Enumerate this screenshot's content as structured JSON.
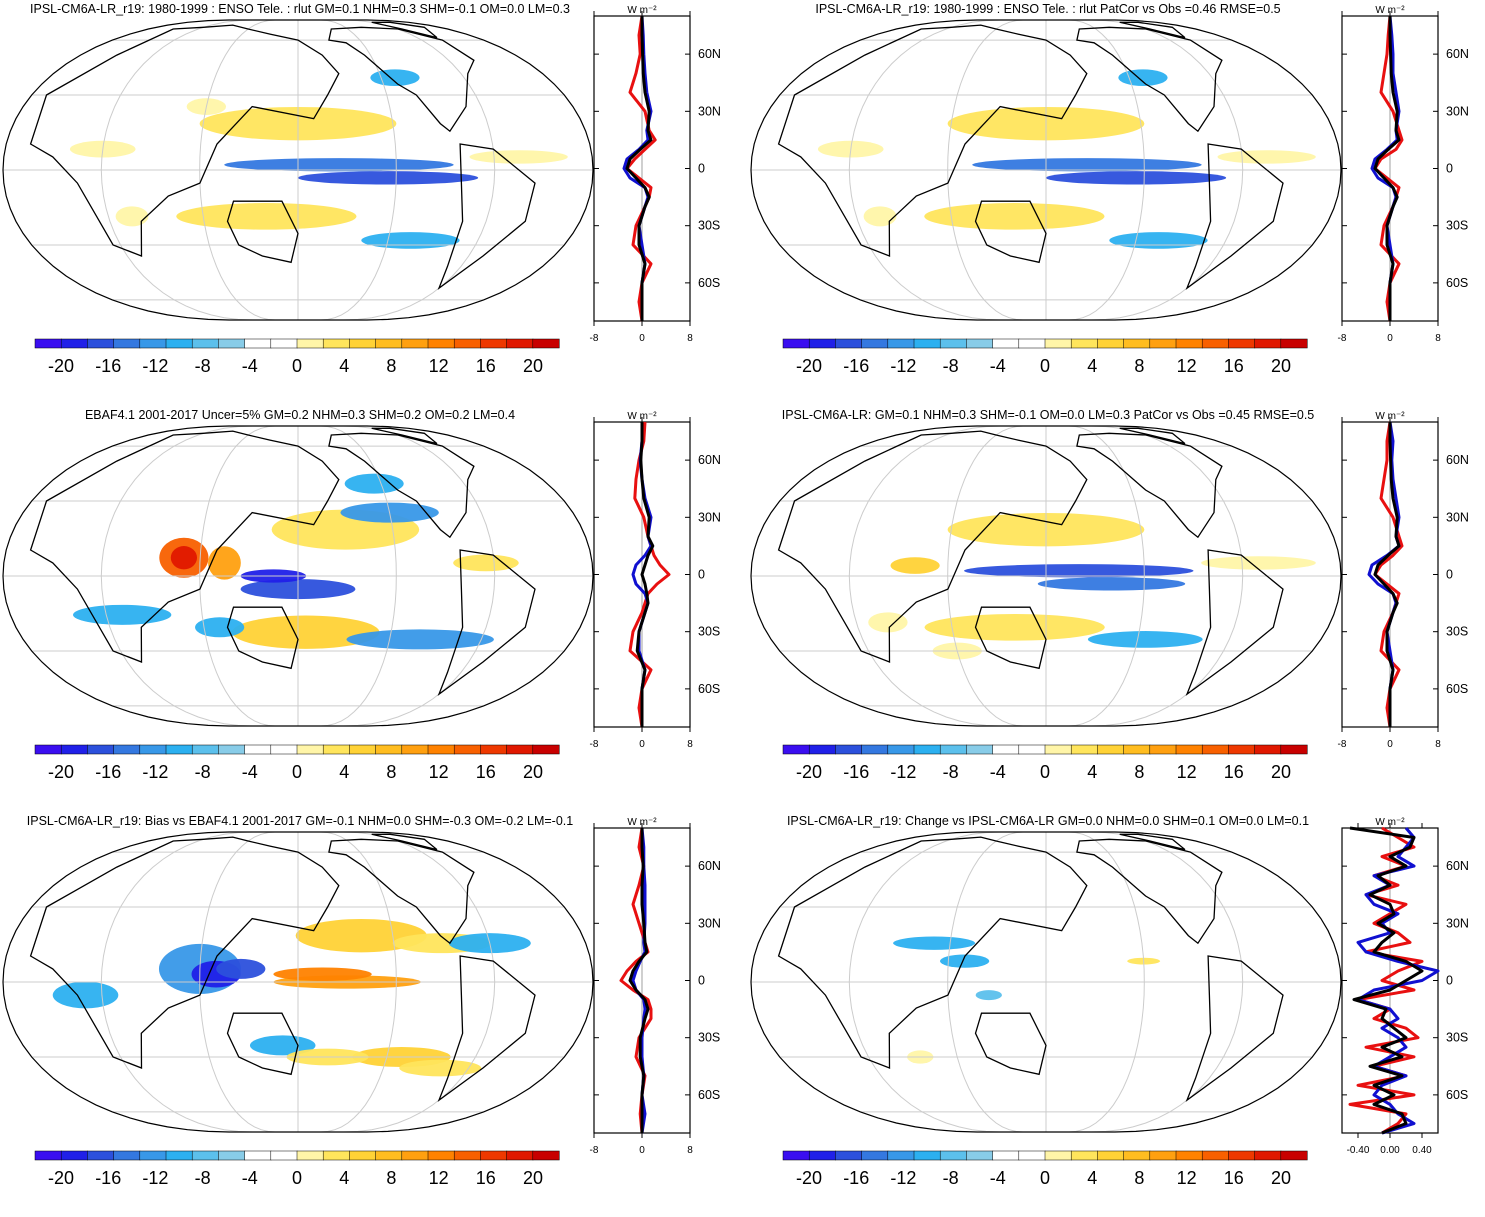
{
  "palette": [
    "#3a0ef0",
    "#2020e8",
    "#2c50dc",
    "#3478e0",
    "#3898e8",
    "#2cb0f0",
    "#5cc0ec",
    "#88cce8",
    "#ffffff",
    "#ffffff",
    "#fff5a8",
    "#ffe55c",
    "#ffd236",
    "#ffbd20",
    "#ffa010",
    "#ff8200",
    "#f86000",
    "#ee3800",
    "#e01800",
    "#c80000"
  ],
  "colorbar_labels": [
    "-20",
    "-16",
    "-12",
    "-8",
    "-4",
    "0",
    "4",
    "8",
    "12",
    "16",
    "20"
  ],
  "lat_labels": [
    "60N",
    "30N",
    "0",
    "30S",
    "60S"
  ],
  "units": "W m⁻²",
  "line_colors": {
    "model": "#e81010",
    "obs": "#1010d0",
    "other": "#000000"
  },
  "panels": [
    {
      "title": "IPSL-CM6A-LR_r19: 1980-1999 : ENSO Tele. : rlut GM=0.1 NHM=0.3 SHM=-0.1 OM=0.0 LM=0.3",
      "x_tick_labels": [
        "-8",
        "0",
        "8"
      ],
      "chart_data": {
        "type": "line",
        "x_range": [
          -8,
          8
        ],
        "y_range": [
          -80,
          80
        ],
        "y": [
          80,
          70,
          60,
          50,
          40,
          30,
          20,
          15,
          10,
          5,
          0,
          -5,
          -10,
          -15,
          -20,
          -30,
          -40,
          -50,
          -60,
          -70,
          -80
        ],
        "series": [
          {
            "color": "model",
            "values": [
              0,
              -0.5,
              -0.3,
              -1.0,
              -2.0,
              0.5,
              1.2,
              2.2,
              0.5,
              -1.2,
              -2.5,
              -0.5,
              1.5,
              1.2,
              0.5,
              -1.0,
              -1.5,
              1.5,
              0,
              -0.5,
              0
            ]
          },
          {
            "color": "obs",
            "values": [
              0,
              0.2,
              0.3,
              0.5,
              0.8,
              1.5,
              0.8,
              1.0,
              -0.5,
              -2.5,
              -3.0,
              -2.0,
              0.5,
              1.0,
              0.5,
              -0.5,
              0,
              0.5,
              0,
              0,
              0
            ]
          },
          {
            "color": "other",
            "values": [
              0,
              0,
              0.1,
              0.2,
              0.5,
              1.2,
              1.0,
              1.5,
              -0.3,
              -2.0,
              -2.5,
              -1.0,
              0.5,
              1.2,
              0.5,
              -0.5,
              -0.5,
              0.5,
              0,
              0,
              0
            ]
          }
        ]
      }
    },
    {
      "title": "IPSL-CM6A-LR_r19: 1980-1999 : ENSO Tele. : rlut PatCor vs Obs =0.46 RMSE=0.5",
      "x_tick_labels": [
        "-8",
        "0",
        "8"
      ],
      "chart_data": {
        "type": "line",
        "x_range": [
          -8,
          8
        ],
        "y_range": [
          -80,
          80
        ],
        "y": [
          80,
          70,
          60,
          50,
          40,
          30,
          20,
          15,
          10,
          5,
          0,
          -5,
          -10,
          -15,
          -20,
          -30,
          -40,
          -50,
          -60,
          -70,
          -80
        ],
        "series": [
          {
            "color": "model",
            "values": [
              0,
              -0.3,
              -0.5,
              -1.0,
              -1.5,
              0.5,
              1.5,
              2.0,
              1.0,
              -1.5,
              -2.5,
              -0.5,
              1.5,
              1.0,
              0.5,
              -1.0,
              -1.5,
              1.5,
              0,
              -0.5,
              0
            ]
          },
          {
            "color": "obs",
            "values": [
              0,
              0.3,
              0.5,
              0.5,
              1.0,
              1.5,
              1.0,
              1.2,
              -0.5,
              -2.5,
              -3.0,
              -2.0,
              0.5,
              1.0,
              0.5,
              -0.5,
              0,
              0.5,
              0,
              0,
              0
            ]
          },
          {
            "color": "other",
            "values": [
              0,
              0,
              0.1,
              0.2,
              0.5,
              1.2,
              1.0,
              1.5,
              -0.3,
              -2.0,
              -2.5,
              -1.0,
              0.5,
              1.2,
              0.5,
              -0.5,
              -0.5,
              0.5,
              0,
              0,
              0
            ]
          }
        ]
      }
    },
    {
      "title": "EBAF4.1 2001-2017 Uncer=5% GM=0.2 NHM=0.3 SHM=0.2 OM=0.2 LM=0.4",
      "x_tick_labels": [
        "-8",
        "0",
        "8"
      ],
      "chart_data": {
        "type": "line",
        "x_range": [
          -8,
          8
        ],
        "y_range": [
          -80,
          80
        ],
        "y": [
          80,
          70,
          60,
          50,
          40,
          30,
          20,
          15,
          10,
          5,
          0,
          -5,
          -10,
          -15,
          -20,
          -30,
          -40,
          -50,
          -60,
          -70,
          -80
        ],
        "series": [
          {
            "color": "model",
            "values": [
              0.5,
              0.3,
              -0.5,
              -1.0,
              -1.2,
              0.3,
              1.0,
              1.5,
              2.0,
              3.0,
              4.5,
              2.5,
              1.0,
              0.5,
              0,
              -1.5,
              -2.0,
              1.5,
              0,
              -0.5,
              0
            ]
          },
          {
            "color": "obs",
            "values": [
              0,
              0,
              -0.3,
              0,
              0.5,
              1.5,
              1.0,
              1.5,
              0.5,
              -1.0,
              -1.5,
              -1.0,
              0.5,
              1.0,
              0.5,
              -0.5,
              -0.5,
              0.5,
              0,
              0,
              0
            ]
          },
          {
            "color": "other",
            "values": [
              0,
              0,
              -0.2,
              0,
              0.3,
              1.2,
              1.0,
              1.8,
              1.0,
              0.5,
              0,
              0.5,
              0.8,
              1.0,
              0.5,
              -0.5,
              -0.8,
              0.5,
              0,
              0,
              0
            ]
          }
        ]
      }
    },
    {
      "title": "IPSL-CM6A-LR: GM=0.1 NHM=0.3 SHM=-0.1 OM=0.0 LM=0.3 PatCor vs Obs =0.45 RMSE=0.5",
      "x_tick_labels": [
        "-8",
        "0",
        "8"
      ],
      "chart_data": {
        "type": "line",
        "x_range": [
          -8,
          8
        ],
        "y_range": [
          -80,
          80
        ],
        "y": [
          80,
          70,
          60,
          50,
          40,
          30,
          20,
          15,
          10,
          5,
          0,
          -5,
          -10,
          -15,
          -20,
          -30,
          -40,
          -50,
          -60,
          -70,
          -80
        ],
        "series": [
          {
            "color": "model",
            "values": [
              0,
              -0.5,
              -0.5,
              -1.0,
              -1.5,
              0.5,
              1.5,
              2.0,
              0.5,
              -1.5,
              -2.5,
              -0.5,
              1.5,
              1.0,
              0.5,
              -1.0,
              -1.5,
              1.5,
              0,
              -0.5,
              0
            ]
          },
          {
            "color": "obs",
            "values": [
              0,
              0.5,
              0.3,
              0.5,
              1.0,
              1.5,
              1.0,
              1.5,
              -0.5,
              -3.0,
              -3.5,
              -2.0,
              0.5,
              1.0,
              0.5,
              -0.5,
              0,
              0.5,
              0,
              0,
              0
            ]
          },
          {
            "color": "other",
            "values": [
              0,
              0,
              0.1,
              0.2,
              0.5,
              1.2,
              1.0,
              1.5,
              -0.3,
              -2.0,
              -2.5,
              -1.0,
              0.5,
              1.2,
              0.5,
              -0.5,
              -0.5,
              0.5,
              0,
              0,
              0
            ]
          }
        ]
      }
    },
    {
      "title": "IPSL-CM6A-LR_r19: Bias vs EBAF4.1 2001-2017 GM=-0.1 NHM=0.0 SHM=-0.3 OM=-0.2 LM=-0.1",
      "x_tick_labels": [
        "-8",
        "0",
        "8"
      ],
      "chart_data": {
        "type": "line",
        "x_range": [
          -8,
          8
        ],
        "y_range": [
          -80,
          80
        ],
        "y": [
          80,
          70,
          60,
          50,
          40,
          30,
          20,
          15,
          10,
          5,
          0,
          -5,
          -10,
          -15,
          -20,
          -30,
          -40,
          -50,
          -60,
          -70,
          -80
        ],
        "series": [
          {
            "color": "model",
            "values": [
              0,
              -0.5,
              0.3,
              -0.5,
              -1.5,
              -0.5,
              0.5,
              1.0,
              -1.0,
              -2.5,
              -3.5,
              -1.5,
              1.0,
              1.5,
              1.5,
              -0.5,
              -1.0,
              0.5,
              0,
              -0.3,
              0
            ]
          },
          {
            "color": "obs",
            "values": [
              0,
              0.3,
              0.3,
              0.5,
              0.5,
              0.5,
              0.3,
              0.5,
              -0.3,
              -1.0,
              -1.5,
              -1.0,
              0.3,
              0.5,
              0.3,
              0,
              0,
              0.3,
              0,
              0.5,
              0
            ]
          },
          {
            "color": "other",
            "values": [
              0,
              0,
              0.2,
              0,
              0,
              0.3,
              0.5,
              0.8,
              -0.5,
              -1.5,
              -2.0,
              -1.0,
              0.5,
              1.0,
              0.5,
              -0.3,
              -0.3,
              0.3,
              0,
              0,
              0
            ]
          }
        ]
      }
    },
    {
      "title": "IPSL-CM6A-LR_r19: Change vs IPSL-CM6A-LR GM=0.0 NHM=0.0 SHM=0.1 OM=0.0 LM=0.1",
      "x_tick_labels": [
        "-0.40",
        "0.00",
        "0.40"
      ],
      "chart_data": {
        "type": "line",
        "x_range": [
          -0.6,
          0.6
        ],
        "y_range": [
          -80,
          80
        ],
        "y": [
          80,
          75,
          70,
          65,
          60,
          55,
          50,
          45,
          40,
          35,
          30,
          25,
          20,
          15,
          10,
          5,
          0,
          -5,
          -10,
          -15,
          -20,
          -25,
          -30,
          -35,
          -40,
          -45,
          -50,
          -55,
          -60,
          -65,
          -70,
          -75,
          -80
        ],
        "series": [
          {
            "color": "model",
            "values": [
              -0.1,
              0.1,
              0.3,
              -0.1,
              0.2,
              -0.2,
              0.1,
              -0.3,
              0.2,
              0.0,
              -0.2,
              0.1,
              0.25,
              -0.3,
              0.4,
              0.1,
              -0.1,
              0.3,
              -0.4,
              0.0,
              -0.2,
              0.2,
              0.35,
              -0.3,
              0.3,
              -0.2,
              0.2,
              -0.4,
              0.3,
              -0.5,
              0.2,
              0.1,
              -0.1
            ]
          },
          {
            "color": "obs",
            "values": [
              0.2,
              0.3,
              0.2,
              0.1,
              0.3,
              -0.2,
              0.0,
              -0.3,
              -0.2,
              0.1,
              -0.1,
              0.0,
              -0.4,
              -0.3,
              0.1,
              0.6,
              0.4,
              -0.2,
              -0.4,
              0.0,
              0.1,
              -0.1,
              0.1,
              0.2,
              0.0,
              -0.2,
              0.2,
              -0.1,
              -0.2,
              0.0,
              0.1,
              0.3,
              -0.1
            ]
          },
          {
            "color": "other",
            "values": [
              -0.5,
              0.3,
              0.25,
              0.0,
              0.2,
              -0.15,
              0.0,
              -0.25,
              0.0,
              0.05,
              -0.15,
              0.05,
              -0.1,
              -0.2,
              0.2,
              0.4,
              0.2,
              0.0,
              -0.45,
              -0.05,
              -0.1,
              0.05,
              0.2,
              -0.1,
              0.15,
              -0.25,
              0.15,
              -0.2,
              0.05,
              -0.2,
              0.15,
              0.2,
              -0.1
            ]
          }
        ]
      }
    }
  ]
}
